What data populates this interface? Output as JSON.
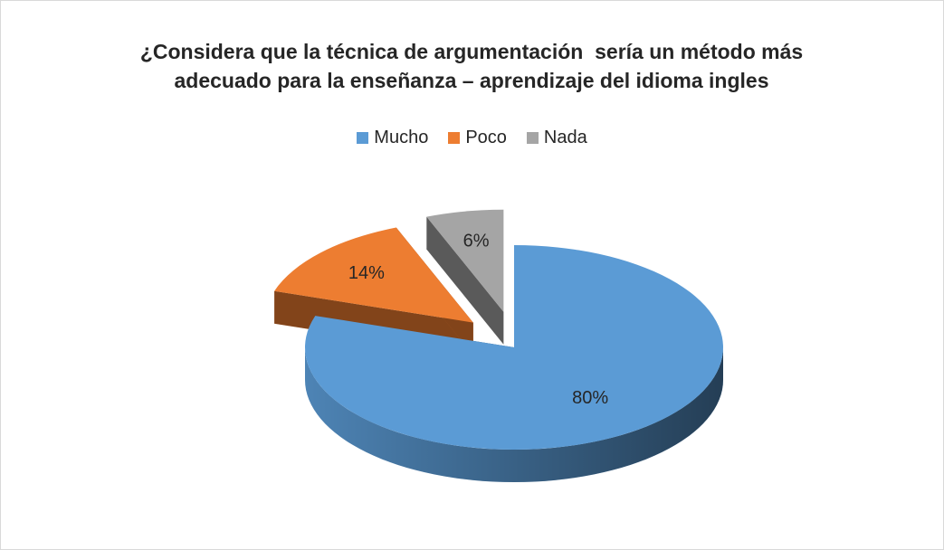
{
  "chart_data": {
    "type": "pie",
    "title": "¿Considera que la técnica de argumentación  sería un método más adecuado para la enseñanza – aprendizaje del idioma ingles",
    "categories": [
      "Mucho",
      "Poco",
      "Nada"
    ],
    "values": [
      80,
      14,
      6
    ],
    "value_labels": [
      "80%",
      "14%",
      "6%"
    ],
    "colors": [
      "#5b9bd5",
      "#ed7d31",
      "#a5a5a5"
    ],
    "legend": "top"
  }
}
